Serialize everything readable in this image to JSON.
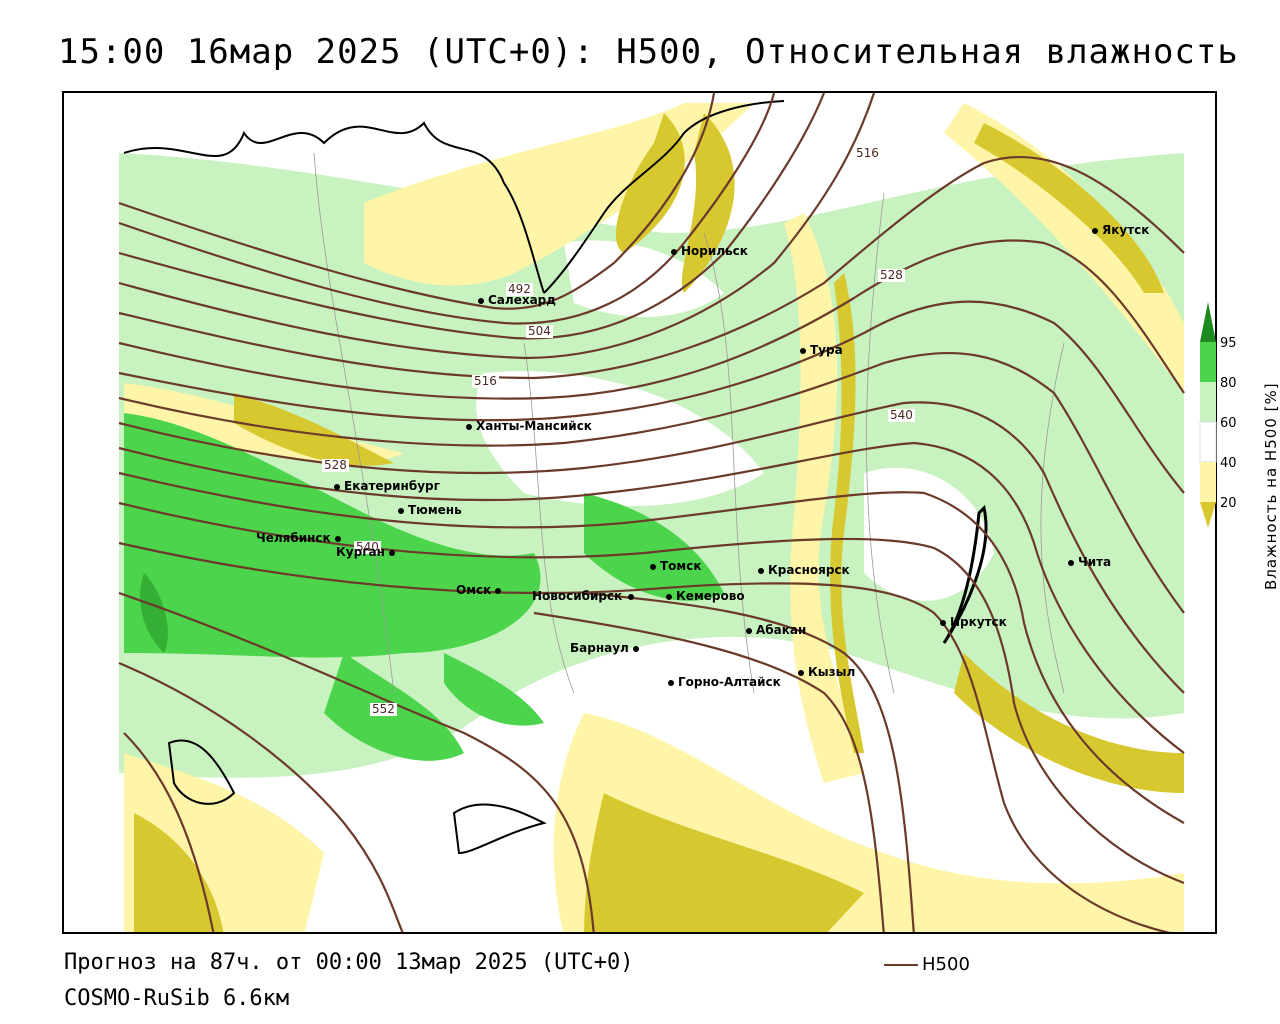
{
  "title": "15:00 16мар 2025 (UTC+0): H500, Относительная влажность",
  "footer": {
    "forecast": "Прогноз на 87ч. от 00:00 13мар 2025 (UTC+0)",
    "model": "COSMO-RuSib 6.6км",
    "h500_key": "H500"
  },
  "legend": {
    "title": "Влажность на H500 [%]",
    "ticks": [
      "95",
      "80",
      "60",
      "40",
      "20"
    ],
    "colors": {
      "c95": "#1c8a1c",
      "c80": "#4cd44c",
      "c60": "#c8f2c0",
      "c40": "#ffffff",
      "c20": "#fff5a8",
      "c0": "#d8c830"
    }
  },
  "contour_color": "#6b3a2a",
  "isohypse_labels": [
    "516",
    "528",
    "492",
    "504",
    "516",
    "540",
    "528",
    "540",
    "552"
  ],
  "cities": [
    {
      "name": "Норильск"
    },
    {
      "name": "Якутск"
    },
    {
      "name": "Салехард"
    },
    {
      "name": "Тура"
    },
    {
      "name": "Ханты-Мансийск"
    },
    {
      "name": "Екатеринбург"
    },
    {
      "name": "Тюмень"
    },
    {
      "name": "Челябинск"
    },
    {
      "name": "Курган"
    },
    {
      "name": "Томск"
    },
    {
      "name": "Красноярск"
    },
    {
      "name": "Омск"
    },
    {
      "name": "Новосибирск"
    },
    {
      "name": "Кемерово"
    },
    {
      "name": "Абакан"
    },
    {
      "name": "Барнаул"
    },
    {
      "name": "Иркутск"
    },
    {
      "name": "Чита"
    },
    {
      "name": "Горно-Алтайск"
    },
    {
      "name": "Кызыл"
    }
  ]
}
